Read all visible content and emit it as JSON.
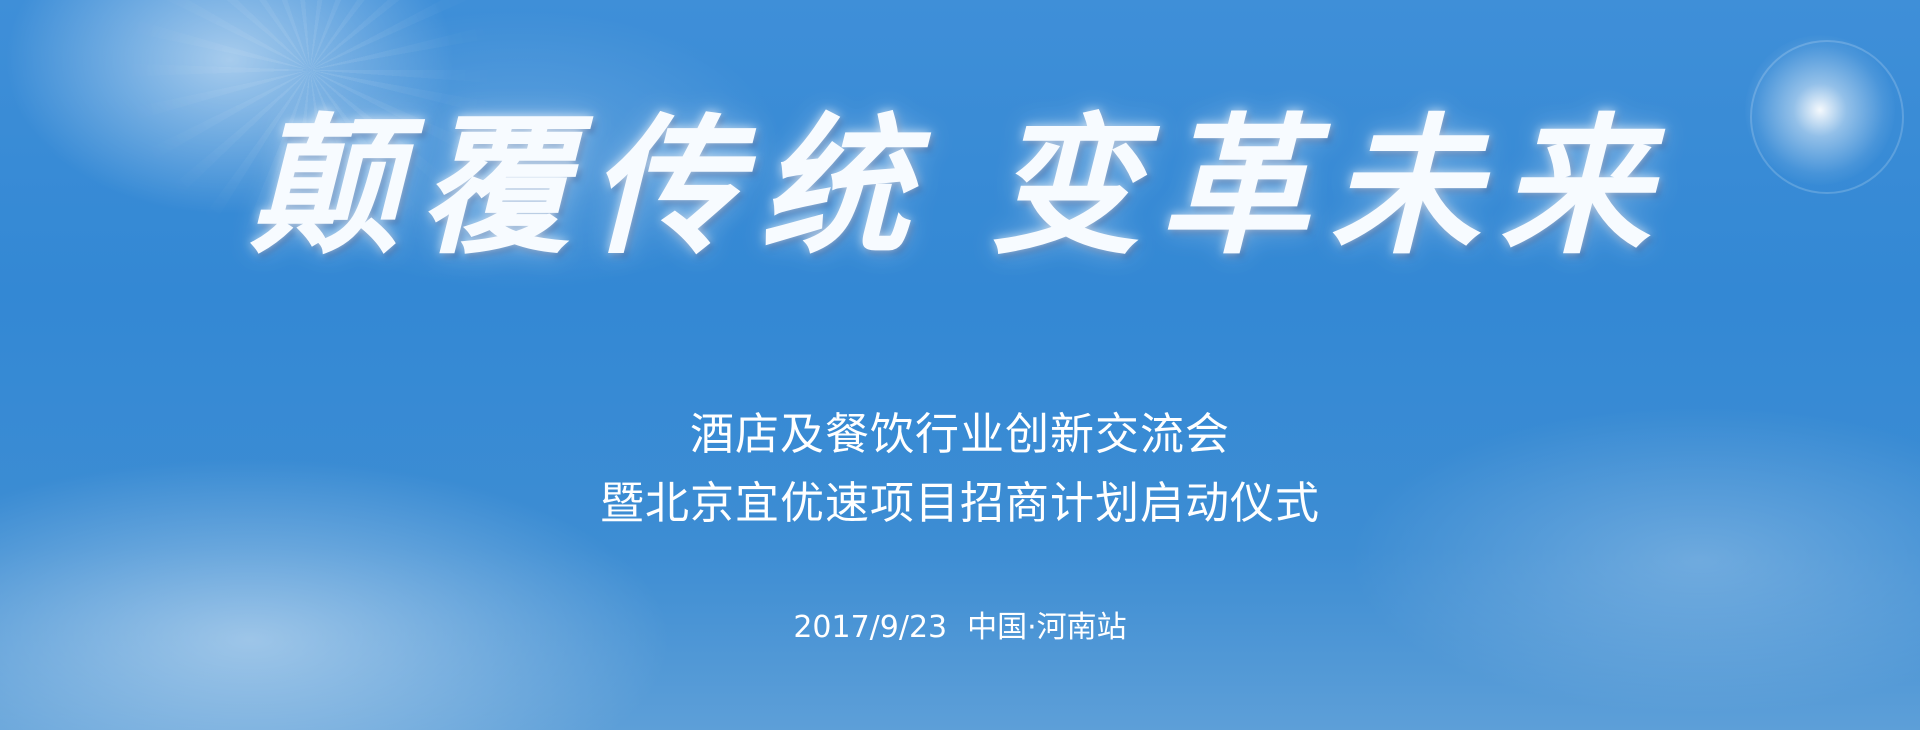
{
  "banner": {
    "headline_left": "颠覆传统",
    "headline_right": "变革未来",
    "subtitle_line1": "酒店及餐饮行业创新交流会",
    "subtitle_line2": "暨北京宜优速项目招商计划启动仪式",
    "event_date": "2017/9/23",
    "event_location": "中国·河南站"
  },
  "colors": {
    "sky_blue": "#3388d4",
    "text": "#ffffff"
  }
}
